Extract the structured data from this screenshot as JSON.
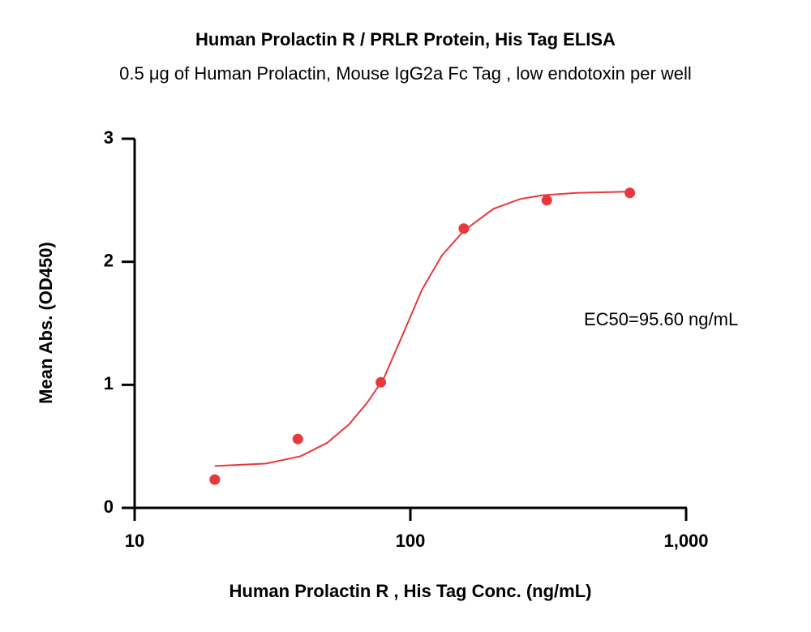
{
  "chart_data": {
    "type": "scatter",
    "title": "Human Prolactin R / PRLR Protein, His Tag  ELISA",
    "subtitle": "0.5 μg of Human Prolactin, Mouse IgG2a Fc  Tag , low endotoxin per well",
    "xlabel": "Human Prolactin R , His Tag  Conc. (ng/mL)",
    "ylabel": "Mean Abs. (OD450)",
    "annotation": "EC50=95.60 ng/mL",
    "xscale": "log",
    "xlim": [
      10,
      1000
    ],
    "ylim": [
      0,
      3
    ],
    "xticks": [
      10,
      100,
      {
        "value": 1000,
        "label": "1,000"
      }
    ],
    "yticks": [
      0,
      1,
      2,
      3
    ],
    "series": [
      {
        "type": "scatter",
        "color": "#e8383d",
        "x": [
          19.53,
          39.06,
          78.13,
          156.25,
          312.5,
          625
        ],
        "values": [
          0.23,
          0.56,
          1.02,
          2.27,
          2.5,
          2.56
        ]
      },
      {
        "type": "line",
        "color": "#e8383d",
        "x": [
          19.53,
          30,
          40,
          50,
          60,
          70,
          80,
          95.6,
          110,
          130,
          156,
          200,
          250,
          300,
          400,
          625
        ],
        "values": [
          0.34,
          0.36,
          0.42,
          0.53,
          0.68,
          0.86,
          1.05,
          1.45,
          1.77,
          2.05,
          2.25,
          2.43,
          2.51,
          2.54,
          2.56,
          2.57
        ]
      }
    ]
  }
}
